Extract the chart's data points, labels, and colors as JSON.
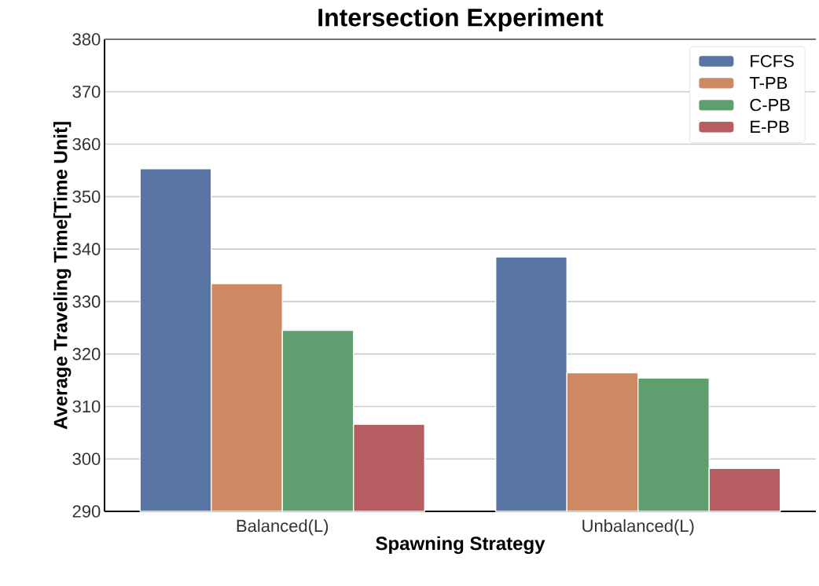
{
  "chart_data": {
    "type": "bar",
    "title": "Intersection Experiment",
    "xlabel": "Spawning Strategy",
    "ylabel": "Average Traveling Time[Time Unit]",
    "categories": [
      "Balanced(L)",
      "Unbalanced(L)"
    ],
    "series": [
      {
        "name": "FCFS",
        "color": "#5875a4",
        "values": [
          355.3,
          338.5
        ]
      },
      {
        "name": "T-PB",
        "color": "#cc8963",
        "values": [
          333.4,
          316.4
        ]
      },
      {
        "name": "C-PB",
        "color": "#5f9e6e",
        "values": [
          324.5,
          315.4
        ]
      },
      {
        "name": "E-PB",
        "color": "#b55d60",
        "values": [
          306.6,
          298.2
        ]
      }
    ],
    "ylim": [
      290,
      380
    ],
    "yticks": [
      290,
      300,
      310,
      320,
      330,
      340,
      350,
      360,
      370,
      380
    ],
    "grid": "y",
    "legend": "top right"
  }
}
